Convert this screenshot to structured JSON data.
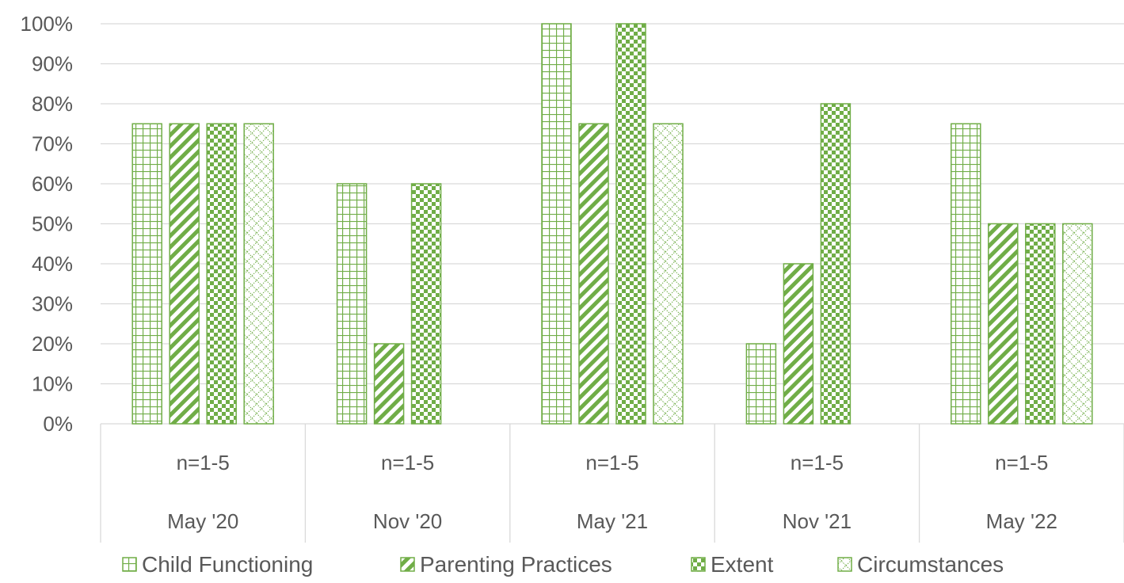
{
  "chart_data": {
    "type": "bar",
    "title": "",
    "xlabel": "",
    "ylabel": "",
    "ylim": [
      0,
      100
    ],
    "y_tick_step": 10,
    "y_tick_format": "percent",
    "grid": true,
    "legend_position": "bottom",
    "categories": [
      "May '20",
      "Nov '20",
      "May '21",
      "Nov '21",
      "May '22"
    ],
    "category_sublabels": [
      "n=1-5",
      "n=1-5",
      "n=1-5",
      "n=1-5",
      "n=1-5"
    ],
    "series": [
      {
        "name": "Child Functioning",
        "pattern": "grid",
        "values": [
          75,
          60,
          100,
          20,
          75
        ]
      },
      {
        "name": "Parenting Practices",
        "pattern": "diagonal",
        "values": [
          75,
          20,
          75,
          40,
          50
        ]
      },
      {
        "name": "Extent",
        "pattern": "checker",
        "values": [
          75,
          60,
          100,
          80,
          50
        ]
      },
      {
        "name": "Circumstances",
        "pattern": "dotted-diamond",
        "values": [
          75,
          null,
          75,
          null,
          50
        ]
      }
    ],
    "colors": {
      "bar_stroke": "#70ad47",
      "pattern": "#70ad47",
      "gridline": "#d9d9d9",
      "axis": "#d9d9d9",
      "text": "#595959"
    }
  }
}
